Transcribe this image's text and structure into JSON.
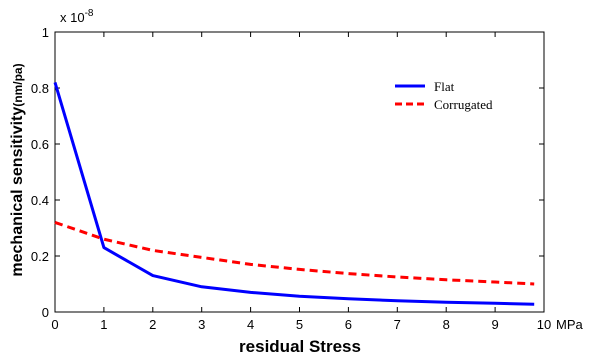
{
  "chart_data": {
    "type": "line",
    "xlabel": "residual Stress",
    "xunit": "MPa",
    "ylabel": "mechanical sensitivity",
    "yunit": "(nm/pa)",
    "y_exponent_label": "x 10",
    "y_exponent_power": "-8",
    "xlim": [
      0,
      10
    ],
    "ylim": [
      0,
      1
    ],
    "xticks": [
      "0",
      "1",
      "2",
      "3",
      "4",
      "5",
      "6",
      "7",
      "8",
      "9",
      "10"
    ],
    "yticks": [
      "0",
      "0.2",
      "0.4",
      "0.6",
      "0.8",
      "1"
    ],
    "grid": false,
    "legend_position": "top-right",
    "series": [
      {
        "name": "Flat",
        "color": "#0000ff",
        "style": "solid",
        "x": [
          0,
          1,
          2,
          3,
          4,
          5,
          6,
          7,
          8,
          9,
          9.8
        ],
        "y": [
          0.82,
          0.23,
          0.13,
          0.09,
          0.07,
          0.056,
          0.047,
          0.04,
          0.035,
          0.031,
          0.028
        ]
      },
      {
        "name": "Corrugated",
        "color": "#ff0000",
        "style": "dashed",
        "x": [
          0,
          1,
          2,
          3,
          4,
          5,
          6,
          7,
          8,
          9,
          9.8
        ],
        "y": [
          0.32,
          0.26,
          0.22,
          0.195,
          0.17,
          0.152,
          0.137,
          0.125,
          0.115,
          0.107,
          0.1
        ]
      }
    ]
  }
}
